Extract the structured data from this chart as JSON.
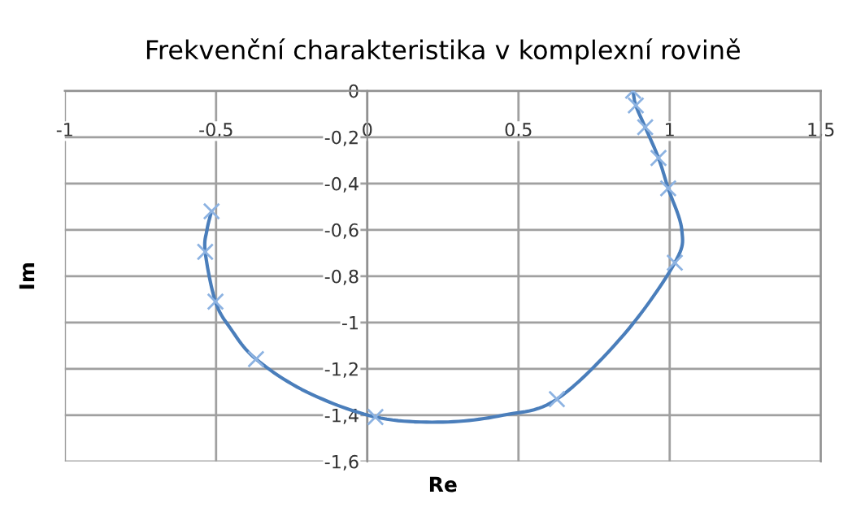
{
  "chart_data": {
    "type": "line",
    "title": "Frekvenční charakteristika v komplexní rovině",
    "xlabel": "Re",
    "ylabel": "Im",
    "grid": true,
    "legend": false,
    "xlim": [
      -1,
      1.5
    ],
    "ylim": [
      -1.6,
      0
    ],
    "xticks": [
      {
        "value": -1,
        "label": "-1"
      },
      {
        "value": -0.5,
        "label": "-0,5"
      },
      0,
      {
        "value": 0.5,
        "label": "0,5"
      },
      1,
      {
        "value": 1.5,
        "label": "1,5"
      }
    ],
    "yticks": [
      0,
      {
        "value": -0.2,
        "label": "-0,2"
      },
      {
        "value": -0.4,
        "label": "-0,4"
      },
      {
        "value": -0.6,
        "label": "-0,6"
      },
      {
        "value": -0.8,
        "label": "-0,8"
      },
      {
        "value": -1,
        "label": "-1"
      },
      {
        "value": -1.2,
        "label": "-1,2"
      },
      {
        "value": -1.4,
        "label": "-1,4"
      },
      {
        "value": -1.6,
        "label": "-1,6"
      }
    ],
    "series": [
      {
        "color": "#4a7ebb",
        "marker": "none",
        "x": [
          0.879,
          0.888,
          0.919,
          0.963,
          0.995,
          1.04,
          1.017,
          0.85,
          0.627,
          0.45,
          0.25,
          0.027,
          -0.2,
          -0.368,
          -0.45,
          -0.502,
          -0.536,
          -0.53,
          -0.515
        ],
        "values": [
          0,
          -0.063,
          -0.157,
          -0.29,
          -0.421,
          -0.6,
          -0.742,
          -1.05,
          -1.331,
          -1.4,
          -1.43,
          -1.408,
          -1.3,
          -1.158,
          -1.03,
          -0.91,
          -0.695,
          -0.6,
          -0.52
        ]
      },
      {
        "type": "scatter",
        "color": "#8db3e2",
        "marker": "cross",
        "x": [
          0.879,
          0.888,
          0.919,
          0.963,
          0.995,
          1.017,
          0.627,
          0.027,
          -0.368,
          -0.502,
          -0.536,
          -0.515
        ],
        "values": [
          0,
          -0.063,
          -0.157,
          -0.29,
          -0.421,
          -0.742,
          -1.331,
          -1.408,
          -1.158,
          -0.91,
          -0.695,
          -0.52
        ]
      }
    ]
  }
}
